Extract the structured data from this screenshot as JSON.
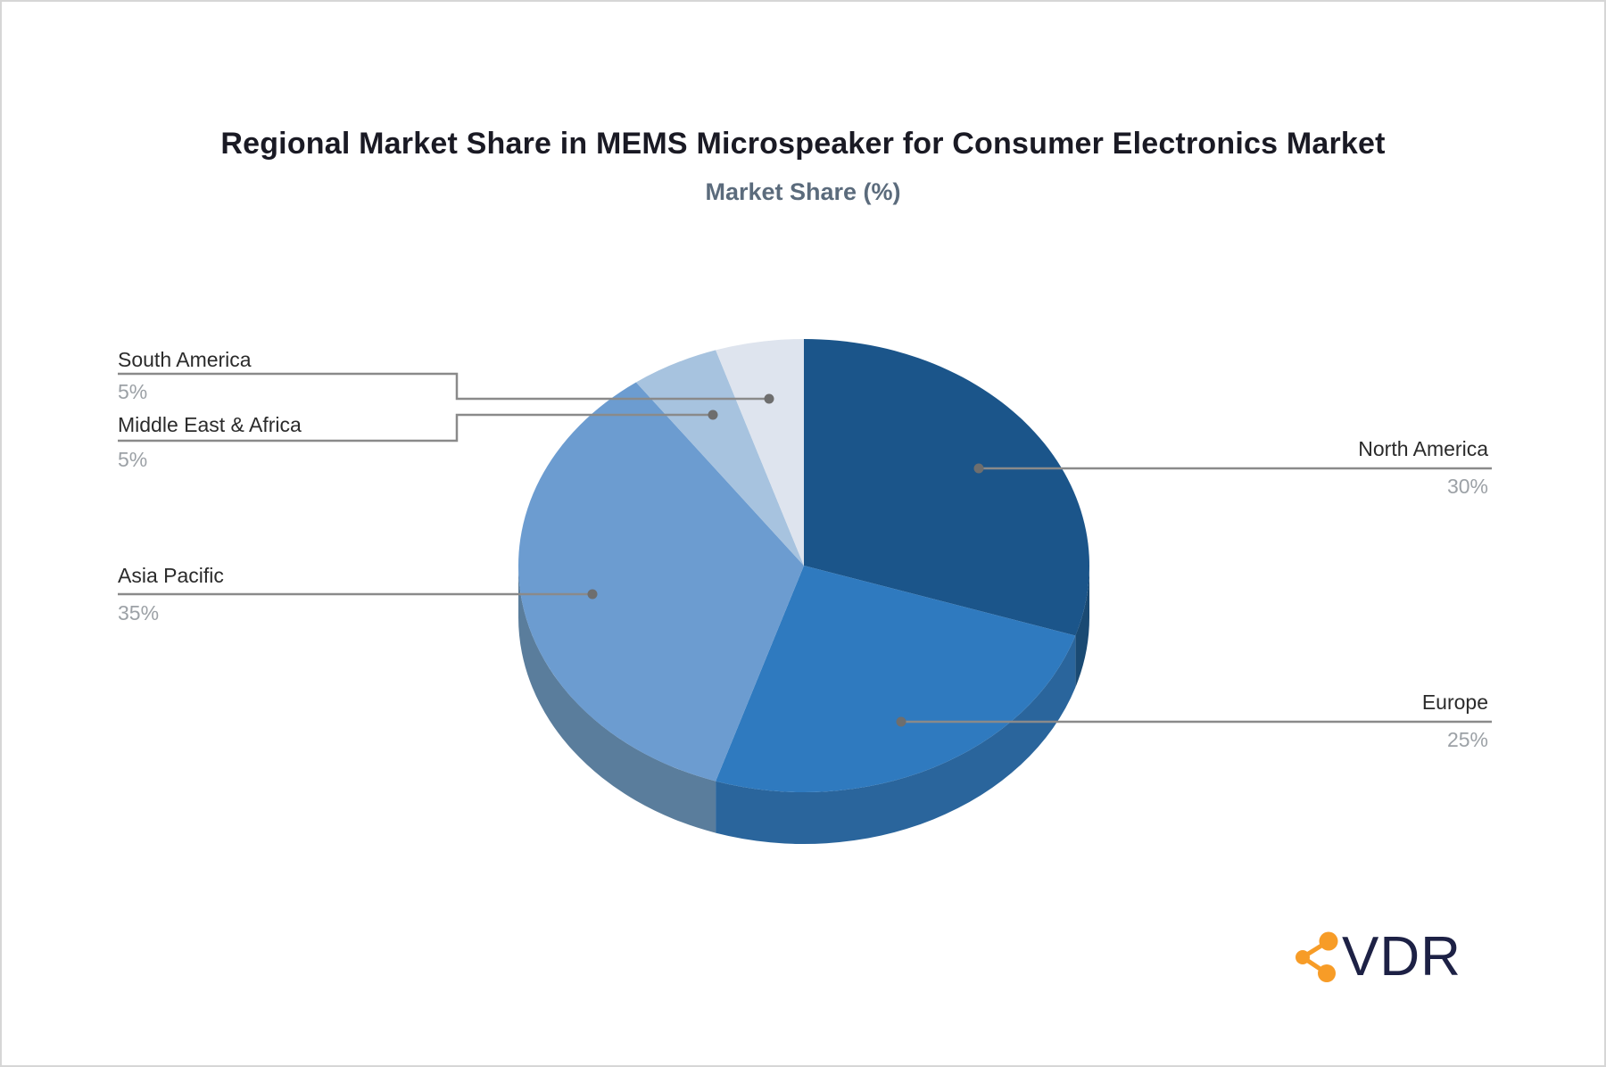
{
  "header": {
    "title": "Regional Market Share in MEMS Microspeaker for Consumer Electronics Market",
    "subtitle": "Market Share (%)"
  },
  "chart_data": {
    "type": "pie",
    "title": "Regional Market Share in MEMS Microspeaker for Consumer Electronics Market",
    "subtitle": "Market Share (%)",
    "unit": "%",
    "style": "3d-pie",
    "start_angle_deg": 0,
    "direction": "clockwise",
    "slices": [
      {
        "label": "North America",
        "value": 30,
        "display": "30%",
        "color": "#1b558a",
        "side_color": "#1a4a73"
      },
      {
        "label": "Europe",
        "value": 25,
        "display": "25%",
        "color": "#2f7abf",
        "side_color": "#2a659c"
      },
      {
        "label": "Asia Pacific",
        "value": 35,
        "display": "35%",
        "color": "#6c9cd0",
        "side_color": "#5a7d9c"
      },
      {
        "label": "Middle East & Africa",
        "value": 5,
        "display": "5%",
        "color": "#a7c3df",
        "side_color": "#8fb0cd"
      },
      {
        "label": "South America",
        "value": 5,
        "display": "5%",
        "color": "#dee4ee",
        "side_color": "#bfcadb"
      }
    ],
    "legend_position": "callouts",
    "callout_line_color": "#8a8a8a",
    "callout_dot_color": "#6e6e6e",
    "label_color": "#2b2b2b",
    "value_color": "#9ca1a6"
  },
  "logo": {
    "text": "VDR",
    "text_color": "#1d2145",
    "icon_color": "#f79c27",
    "icon": "share-network-icon"
  }
}
